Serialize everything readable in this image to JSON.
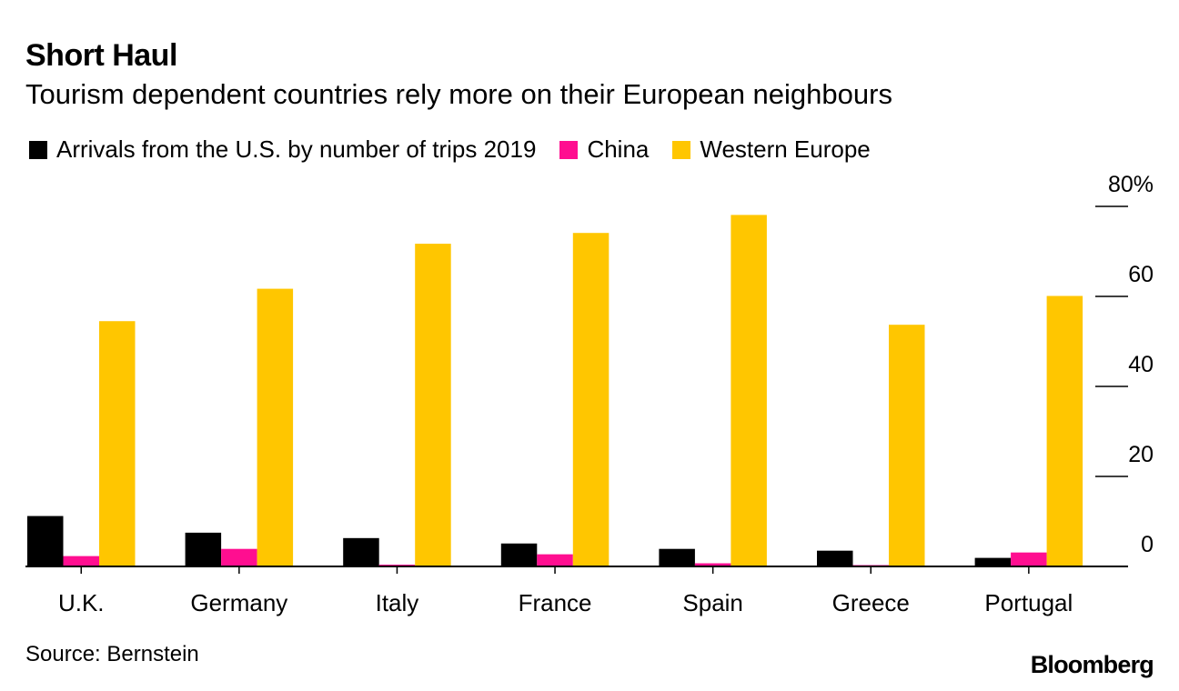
{
  "header": {
    "title": "Short Haul",
    "subtitle": "Tourism dependent countries rely more on their European neighbours"
  },
  "footer": {
    "source": "Source: Bernstein",
    "brand": "Bloomberg"
  },
  "colors": {
    "us": "#000000",
    "china": "#ff0e90",
    "western_europe": "#ffc600",
    "axis": "#000000"
  },
  "chart_data": {
    "type": "bar",
    "title": "Short Haul",
    "subtitle": "Tourism dependent countries rely more on their European neighbours",
    "xlabel": "",
    "ylabel": "",
    "ylim": [
      0,
      80
    ],
    "y_ticks": [
      0,
      20,
      40,
      60,
      80
    ],
    "y_tick_labels": [
      "0",
      "20",
      "40",
      "60",
      "80%"
    ],
    "y_axis_position": "right",
    "grid": false,
    "legend_position": "top-left",
    "categories": [
      "U.K.",
      "Germany",
      "Italy",
      "France",
      "Spain",
      "Greece",
      "Portugal"
    ],
    "series": [
      {
        "name": "Arrivals from the U.S. by number of trips 2019",
        "color_key": "us",
        "values": [
          11.2,
          7.5,
          6.3,
          5.1,
          3.9,
          3.5,
          1.9
        ]
      },
      {
        "name": "China",
        "color_key": "china",
        "values": [
          2.3,
          3.9,
          0.4,
          2.7,
          0.7,
          0.3,
          3.1
        ]
      },
      {
        "name": "Western Europe",
        "color_key": "western_europe",
        "values": [
          54.5,
          61.7,
          71.7,
          74.1,
          78.1,
          53.7,
          60.1
        ]
      }
    ]
  }
}
